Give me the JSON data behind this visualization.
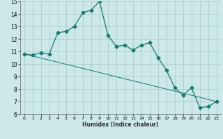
{
  "line1_x": [
    0,
    1,
    2,
    3,
    4,
    5,
    6,
    7,
    8,
    9,
    10,
    11,
    12,
    13,
    14,
    15,
    16,
    17,
    18,
    19,
    20,
    21,
    22,
    23
  ],
  "line1_y": [
    10.8,
    10.7,
    10.9,
    10.8,
    12.5,
    12.6,
    13.0,
    14.1,
    14.3,
    15.0,
    12.3,
    11.4,
    11.5,
    11.1,
    11.5,
    11.7,
    10.5,
    9.5,
    8.1,
    7.5,
    8.1,
    6.5,
    6.6,
    7.0
  ],
  "line2_x": [
    0,
    23
  ],
  "line2_y": [
    10.8,
    7.0
  ],
  "line_color": "#1a7a6e",
  "bg_color": "#cce8e8",
  "grid_color": "#aacccc",
  "xlabel": "Humidex (Indice chaleur)",
  "xlim": [
    -0.5,
    23.5
  ],
  "ylim": [
    6,
    15
  ],
  "yticks": [
    6,
    7,
    8,
    9,
    10,
    11,
    12,
    13,
    14,
    15
  ],
  "xticks": [
    0,
    1,
    2,
    3,
    4,
    5,
    6,
    7,
    8,
    9,
    10,
    11,
    12,
    13,
    14,
    15,
    16,
    17,
    18,
    19,
    20,
    21,
    22,
    23
  ]
}
